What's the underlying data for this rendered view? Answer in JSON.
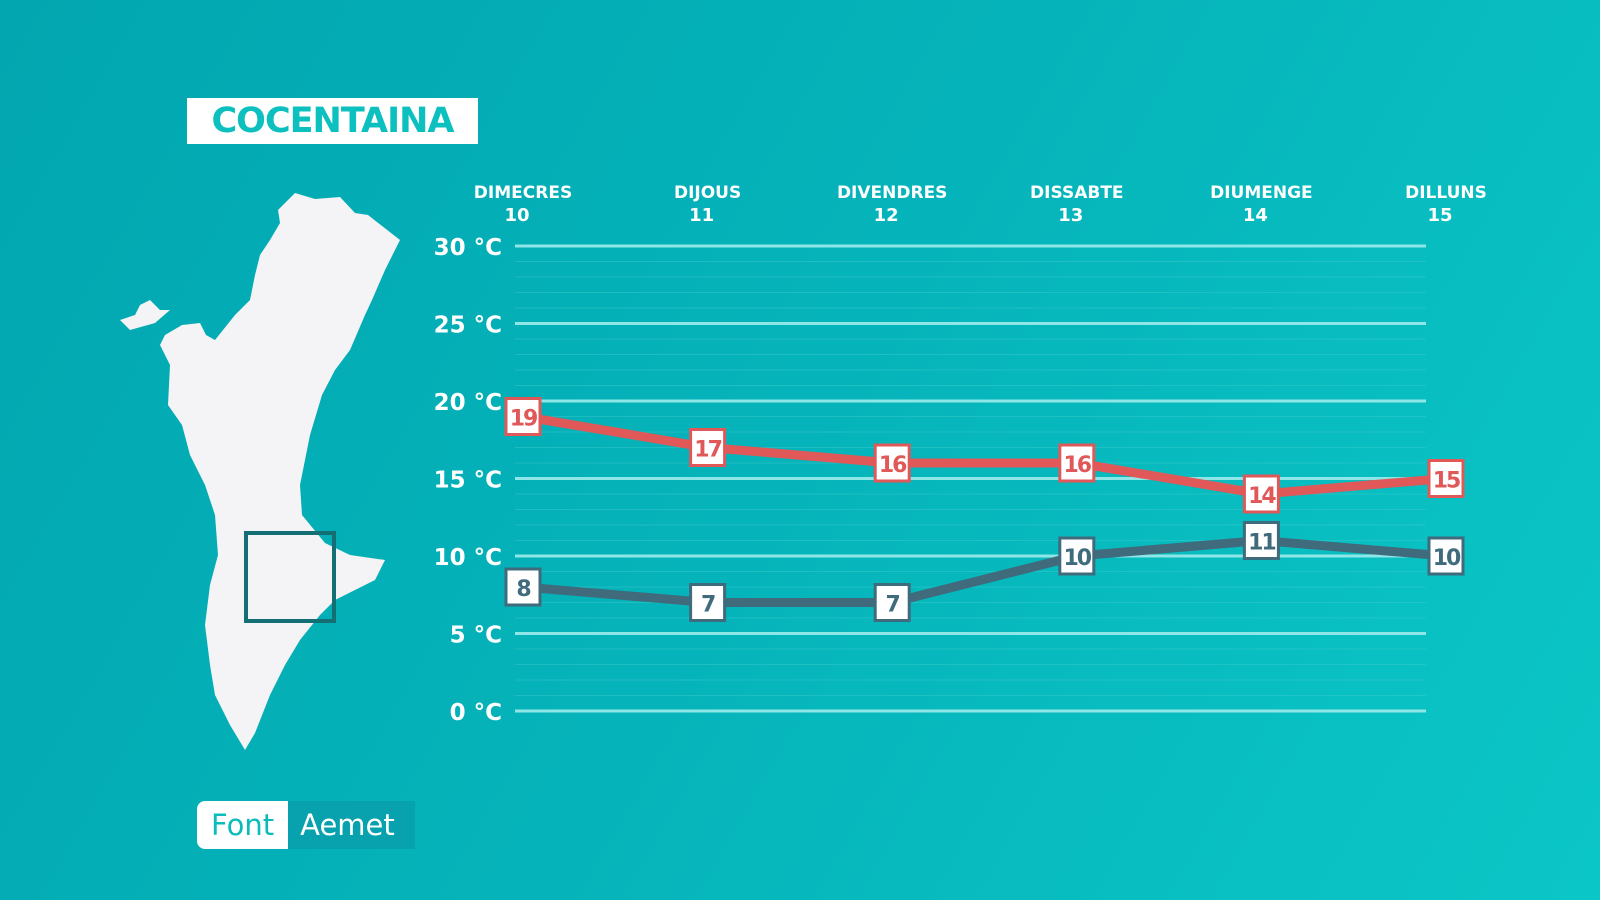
{
  "location": "COCENTAINA",
  "source": {
    "label": "Font",
    "value": "Aemet"
  },
  "colors": {
    "max": "#e05858",
    "min": "#3f6b7c",
    "grid": "#8fe6e6",
    "background": "#05b4ba"
  },
  "chart_data": {
    "type": "line",
    "categories": [
      [
        "DIMECRES",
        "10"
      ],
      [
        "DIJOUS",
        "11"
      ],
      [
        "DIVENDRES",
        "12"
      ],
      [
        "DISSABTE",
        "13"
      ],
      [
        "DIUMENGE",
        "14"
      ],
      [
        "DILLUNS",
        "15"
      ]
    ],
    "yticks": [
      "30 °C",
      "25 °C",
      "20 °C",
      "15 °C",
      "10 °C",
      "5 °C",
      "0 °C"
    ],
    "ylim": [
      0,
      30
    ],
    "grid": true,
    "series": [
      {
        "key": "max",
        "values": [
          19,
          17,
          16,
          16,
          14,
          15
        ]
      },
      {
        "key": "min",
        "values": [
          8,
          7,
          7,
          10,
          11,
          10
        ]
      }
    ]
  }
}
